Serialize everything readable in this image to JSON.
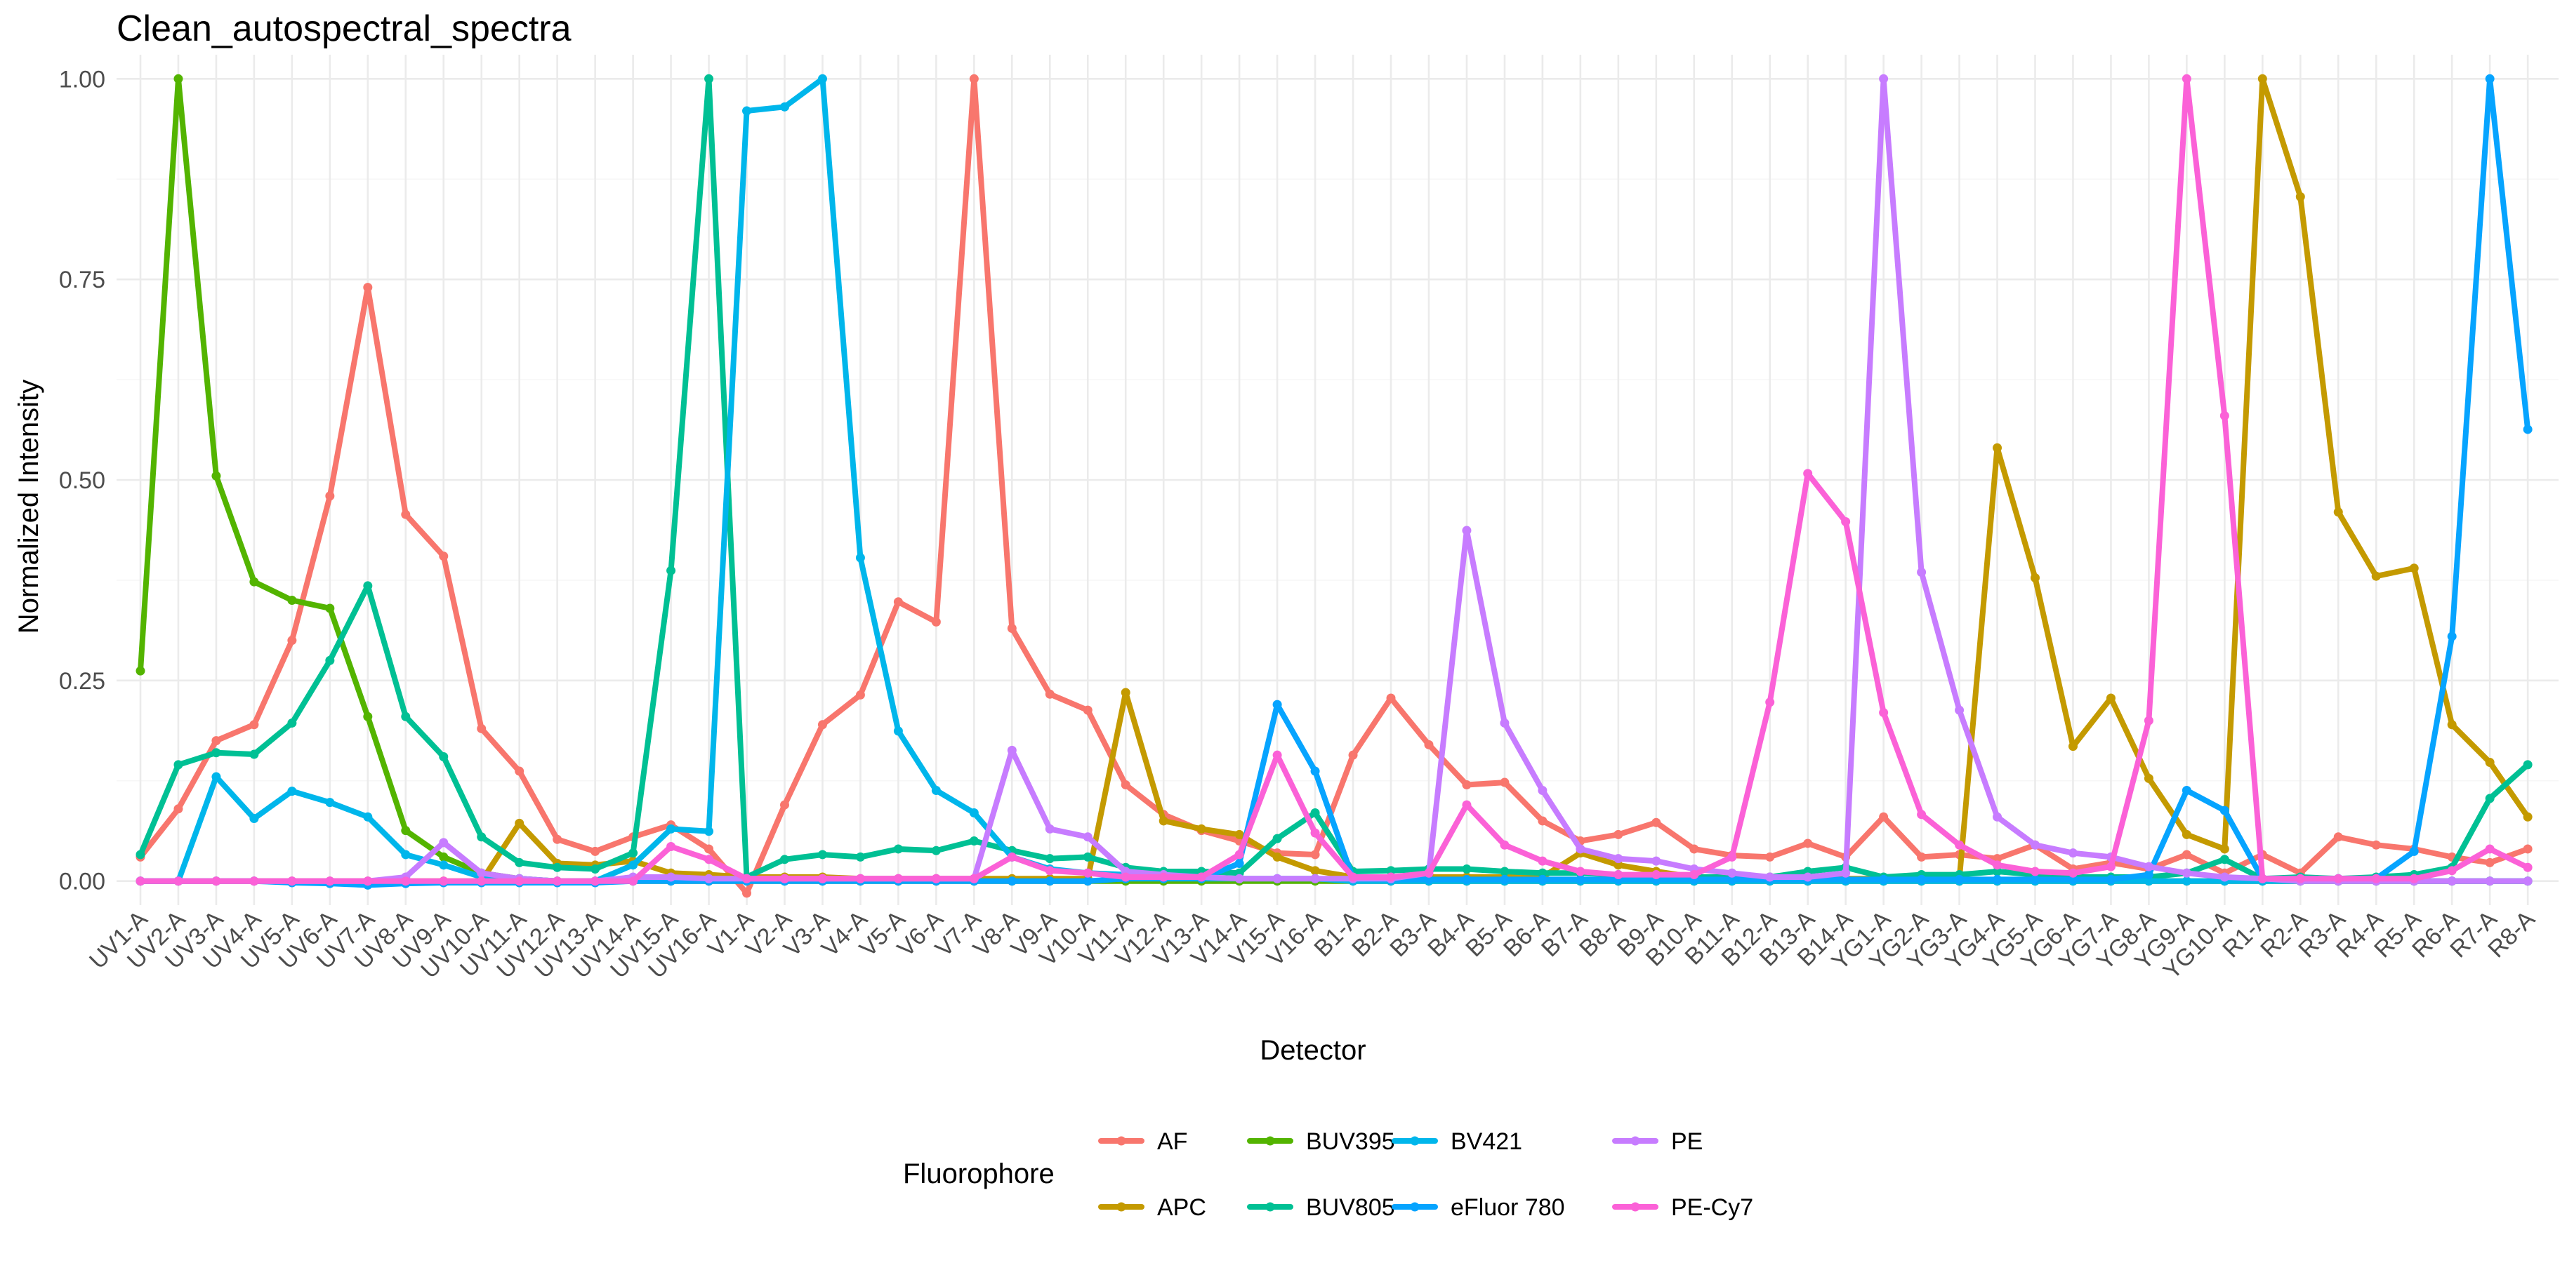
{
  "chart_data": {
    "type": "line",
    "title": "Clean_autospectral_spectra",
    "xlabel": "Detector",
    "ylabel": "Normalized Intensity",
    "ylim": [
      -0.03,
      1.03
    ],
    "yticks": [
      0.0,
      0.25,
      0.5,
      0.75,
      1.0
    ],
    "ytick_labels": [
      "0.00",
      "0.25",
      "0.50",
      "0.75",
      "1.00"
    ],
    "grid": true,
    "legend_title": "Fluorophore",
    "legend_position": "bottom",
    "categories": [
      "UV1-A",
      "UV2-A",
      "UV3-A",
      "UV4-A",
      "UV5-A",
      "UV6-A",
      "UV7-A",
      "UV8-A",
      "UV9-A",
      "UV10-A",
      "UV11-A",
      "UV12-A",
      "UV13-A",
      "UV14-A",
      "UV15-A",
      "UV16-A",
      "V1-A",
      "V2-A",
      "V3-A",
      "V4-A",
      "V5-A",
      "V6-A",
      "V7-A",
      "V8-A",
      "V9-A",
      "V10-A",
      "V11-A",
      "V12-A",
      "V13-A",
      "V14-A",
      "V15-A",
      "V16-A",
      "B1-A",
      "B2-A",
      "B3-A",
      "B4-A",
      "B5-A",
      "B6-A",
      "B7-A",
      "B8-A",
      "B9-A",
      "B10-A",
      "B11-A",
      "B12-A",
      "B13-A",
      "B14-A",
      "YG1-A",
      "YG2-A",
      "YG3-A",
      "YG4-A",
      "YG5-A",
      "YG6-A",
      "YG7-A",
      "YG8-A",
      "YG9-A",
      "YG10-A",
      "R1-A",
      "R2-A",
      "R3-A",
      "R4-A",
      "R5-A",
      "R6-A",
      "R7-A",
      "R8-A"
    ],
    "series": [
      {
        "name": "AF",
        "color": "#F8766D",
        "values": [
          0.03,
          0.09,
          0.175,
          0.195,
          0.3,
          0.48,
          0.74,
          0.457,
          0.405,
          0.19,
          0.137,
          0.052,
          0.037,
          0.055,
          0.07,
          0.04,
          -0.015,
          0.095,
          0.195,
          0.232,
          0.348,
          0.323,
          1.0,
          0.315,
          0.233,
          0.213,
          0.12,
          0.083,
          0.063,
          0.05,
          0.035,
          0.033,
          0.157,
          0.228,
          0.17,
          0.12,
          0.123,
          0.075,
          0.05,
          0.058,
          0.073,
          0.04,
          0.032,
          0.03,
          0.047,
          0.03,
          0.08,
          0.03,
          0.033,
          0.028,
          0.045,
          0.015,
          0.023,
          0.015,
          0.033,
          0.01,
          0.033,
          0.01,
          0.055,
          0.045,
          0.04,
          0.03,
          0.023,
          0.04
        ]
      },
      {
        "name": "APC",
        "color": "#C49A00",
        "values": [
          0.0,
          0.0,
          0.0,
          0.0,
          0.0,
          0.0,
          0.0,
          0.0,
          0.0,
          0.0,
          0.072,
          0.022,
          0.02,
          0.025,
          0.01,
          0.008,
          0.005,
          0.005,
          0.005,
          0.003,
          0.003,
          0.003,
          0.003,
          0.003,
          0.003,
          0.003,
          0.235,
          0.075,
          0.065,
          0.058,
          0.03,
          0.013,
          0.005,
          0.005,
          0.005,
          0.005,
          0.005,
          0.005,
          0.035,
          0.02,
          0.012,
          0.005,
          0.005,
          0.005,
          0.005,
          0.003,
          0.003,
          0.003,
          0.003,
          0.54,
          0.378,
          0.168,
          0.228,
          0.128,
          0.058,
          0.04,
          1.0,
          0.853,
          0.46,
          0.38,
          0.39,
          0.195,
          0.148,
          0.08
        ]
      },
      {
        "name": "BUV395",
        "color": "#53B400",
        "values": [
          0.262,
          1.0,
          0.505,
          0.373,
          0.35,
          0.34,
          0.205,
          0.063,
          0.03,
          0.01,
          0.003,
          0.0,
          0.0,
          0.0,
          0.0,
          0.0,
          0.0,
          0.0,
          0.0,
          0.0,
          0.0,
          0.0,
          0.0,
          0.0,
          0.0,
          0.0,
          0.0,
          0.0,
          0.0,
          0.0,
          0.0,
          0.0,
          0.0,
          0.0,
          0.0,
          0.0,
          0.0,
          0.0,
          0.0,
          0.0,
          0.0,
          0.0,
          0.0,
          0.0,
          0.0,
          0.0,
          0.0,
          0.0,
          0.0,
          0.0,
          0.0,
          0.0,
          0.0,
          0.0,
          0.0,
          0.0,
          0.0,
          0.0,
          0.0,
          0.0,
          0.0,
          0.0,
          0.0,
          0.0
        ]
      },
      {
        "name": "BUV805",
        "color": "#00C094",
        "values": [
          0.033,
          0.145,
          0.16,
          0.158,
          0.197,
          0.275,
          0.368,
          0.205,
          0.155,
          0.055,
          0.023,
          0.017,
          0.015,
          0.035,
          0.387,
          1.0,
          0.005,
          0.027,
          0.033,
          0.03,
          0.04,
          0.038,
          0.05,
          0.038,
          0.028,
          0.03,
          0.017,
          0.012,
          0.012,
          0.01,
          0.053,
          0.085,
          0.012,
          0.013,
          0.015,
          0.015,
          0.012,
          0.01,
          0.01,
          0.008,
          0.005,
          0.005,
          0.005,
          0.005,
          0.012,
          0.017,
          0.005,
          0.008,
          0.008,
          0.012,
          0.008,
          0.005,
          0.005,
          0.005,
          0.01,
          0.027,
          0.003,
          0.005,
          0.003,
          0.005,
          0.008,
          0.017,
          0.103,
          0.145
        ]
      },
      {
        "name": "BV421",
        "color": "#00B6EB",
        "values": [
          0.0,
          0.0,
          0.13,
          0.078,
          0.112,
          0.098,
          0.08,
          0.033,
          0.02,
          0.005,
          0.003,
          0.0,
          0.0,
          0.02,
          0.065,
          0.062,
          0.96,
          0.965,
          1.0,
          0.403,
          0.187,
          0.113,
          0.085,
          0.03,
          0.015,
          0.01,
          0.008,
          0.005,
          0.003,
          0.003,
          0.003,
          0.003,
          0.0,
          0.0,
          0.0,
          0.0,
          0.0,
          0.0,
          0.0,
          0.0,
          0.0,
          0.0,
          0.0,
          0.0,
          0.0,
          0.0,
          0.0,
          0.0,
          0.0,
          0.0,
          0.0,
          0.0,
          0.0,
          0.0,
          0.0,
          0.0,
          0.0,
          0.0,
          0.0,
          0.0,
          0.0,
          0.0,
          0.0,
          0.0
        ]
      },
      {
        "name": "eFluor 780",
        "color": "#06A4FF",
        "values": [
          0.0,
          0.0,
          0.0,
          0.0,
          -0.002,
          -0.003,
          -0.005,
          -0.003,
          -0.002,
          -0.002,
          -0.002,
          -0.002,
          -0.002,
          0.0,
          0.0,
          0.0,
          0.0,
          0.0,
          0.0,
          0.0,
          0.0,
          0.0,
          0.0,
          0.0,
          0.0,
          0.0,
          0.003,
          0.003,
          0.003,
          0.022,
          0.22,
          0.137,
          0.003,
          0.002,
          0.002,
          0.002,
          0.002,
          0.002,
          0.002,
          0.002,
          0.002,
          0.002,
          0.002,
          0.002,
          0.002,
          0.002,
          0.002,
          0.002,
          0.002,
          0.002,
          0.002,
          0.002,
          0.002,
          0.008,
          0.113,
          0.088,
          0.003,
          0.003,
          0.003,
          0.003,
          0.037,
          0.305,
          1.0,
          0.563
        ]
      },
      {
        "name": "PE",
        "color": "#C77CFF",
        "values": [
          0.0,
          0.0,
          0.0,
          0.0,
          0.0,
          0.0,
          0.0,
          0.005,
          0.048,
          0.01,
          0.003,
          0.0,
          0.0,
          0.005,
          0.005,
          0.003,
          0.003,
          0.003,
          0.003,
          0.003,
          0.003,
          0.003,
          0.003,
          0.163,
          0.065,
          0.055,
          0.012,
          0.008,
          0.005,
          0.003,
          0.003,
          0.003,
          0.003,
          0.003,
          0.01,
          0.437,
          0.197,
          0.113,
          0.04,
          0.028,
          0.025,
          0.015,
          0.01,
          0.005,
          0.005,
          0.01,
          1.0,
          0.385,
          0.213,
          0.08,
          0.045,
          0.035,
          0.03,
          0.018,
          0.01,
          0.005,
          0.003,
          0.0,
          0.0,
          0.0,
          0.0,
          0.0,
          0.0,
          0.0
        ]
      },
      {
        "name": "PE-Cy7",
        "color": "#FB61D7",
        "values": [
          0.0,
          0.0,
          0.0,
          0.0,
          0.0,
          0.0,
          0.0,
          0.0,
          0.0,
          0.0,
          0.0,
          0.0,
          0.0,
          0.0,
          0.043,
          0.027,
          0.003,
          0.003,
          0.003,
          0.003,
          0.003,
          0.003,
          0.003,
          0.03,
          0.013,
          0.01,
          0.005,
          0.005,
          0.005,
          0.033,
          0.157,
          0.06,
          0.005,
          0.005,
          0.01,
          0.095,
          0.045,
          0.025,
          0.012,
          0.008,
          0.008,
          0.008,
          0.03,
          0.223,
          0.508,
          0.448,
          0.21,
          0.083,
          0.045,
          0.02,
          0.012,
          0.01,
          0.018,
          0.2,
          1.0,
          0.58,
          0.003,
          0.003,
          0.003,
          0.003,
          0.003,
          0.013,
          0.04,
          0.017
        ]
      }
    ],
    "legend": [
      {
        "label": "AF",
        "series": 0
      },
      {
        "label": "APC",
        "series": 1
      },
      {
        "label": "BUV395",
        "series": 2
      },
      {
        "label": "BUV805",
        "series": 3
      },
      {
        "label": "BV421",
        "series": 4
      },
      {
        "label": "eFluor 780",
        "series": 5
      },
      {
        "label": "PE",
        "series": 6
      },
      {
        "label": "PE-Cy7",
        "series": 7
      }
    ]
  }
}
